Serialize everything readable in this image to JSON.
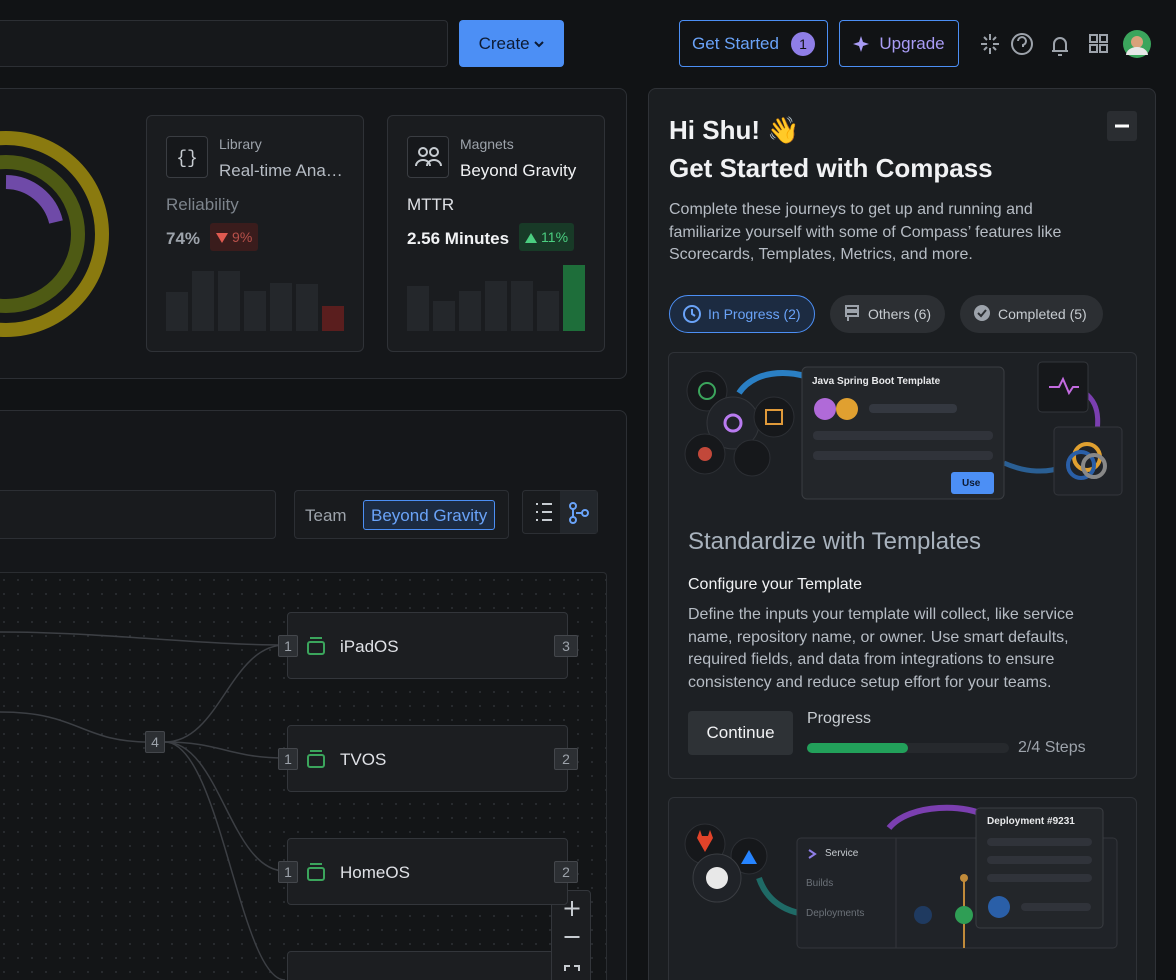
{
  "top_bar": {
    "create": "Create",
    "get_started": "Get Started",
    "get_started_count": "1",
    "upgrade": "Upgrade"
  },
  "cards": [
    {
      "kicker": "Library",
      "name": "Real-time Ana…",
      "metric": "Reliability",
      "value": "74%",
      "change": "9%",
      "direction": "down",
      "bars": [
        39,
        60,
        60,
        40,
        48,
        47,
        25
      ]
    },
    {
      "kicker": "Magnets",
      "name": "Beyond Gravity",
      "metric": "MTTR",
      "value": "2.56 Minutes",
      "change": "11%",
      "direction": "up",
      "bars": [
        45,
        30,
        40,
        50,
        50,
        40,
        66
      ]
    }
  ],
  "filter": {
    "label": "Team",
    "value": "Beyond Gravity"
  },
  "graph": {
    "hub_count": "4",
    "nodes": [
      {
        "name": "iPadOS",
        "inputs": "1",
        "outputs": "3"
      },
      {
        "name": "TVOS",
        "inputs": "1",
        "outputs": "2"
      },
      {
        "name": "HomeOS",
        "inputs": "1",
        "outputs": "2"
      }
    ]
  },
  "panel": {
    "greeting": "Hi Shu! 👋",
    "title": "Get Started with Compass",
    "description": "Complete these journeys to get up and running and familiarize yourself with some of Compass’ features like Scorecards, Templates, Metrics, and more.",
    "tabs": [
      "In Progress (2)",
      "Others (6)",
      "Completed (5)"
    ],
    "journey": {
      "illustration_title": "Java Spring Boot Template",
      "illustration_button": "Use",
      "title": "Standardize with Templates",
      "step": "Configure your Template",
      "description": "Define the inputs your template will collect, like service name, repository name, or owner. Use smart defaults, required fields, and data from integrations to ensure consistency and reduce setup effort for your teams.",
      "button": "Continue",
      "progress_label": "Progress",
      "progress": {
        "label": "2/4 Steps",
        "completed": 2,
        "total": 4
      }
    },
    "next_journey": {
      "menu": [
        "Service",
        "Builds",
        "Deployments"
      ],
      "card_title": "Deployment #9231"
    }
  }
}
